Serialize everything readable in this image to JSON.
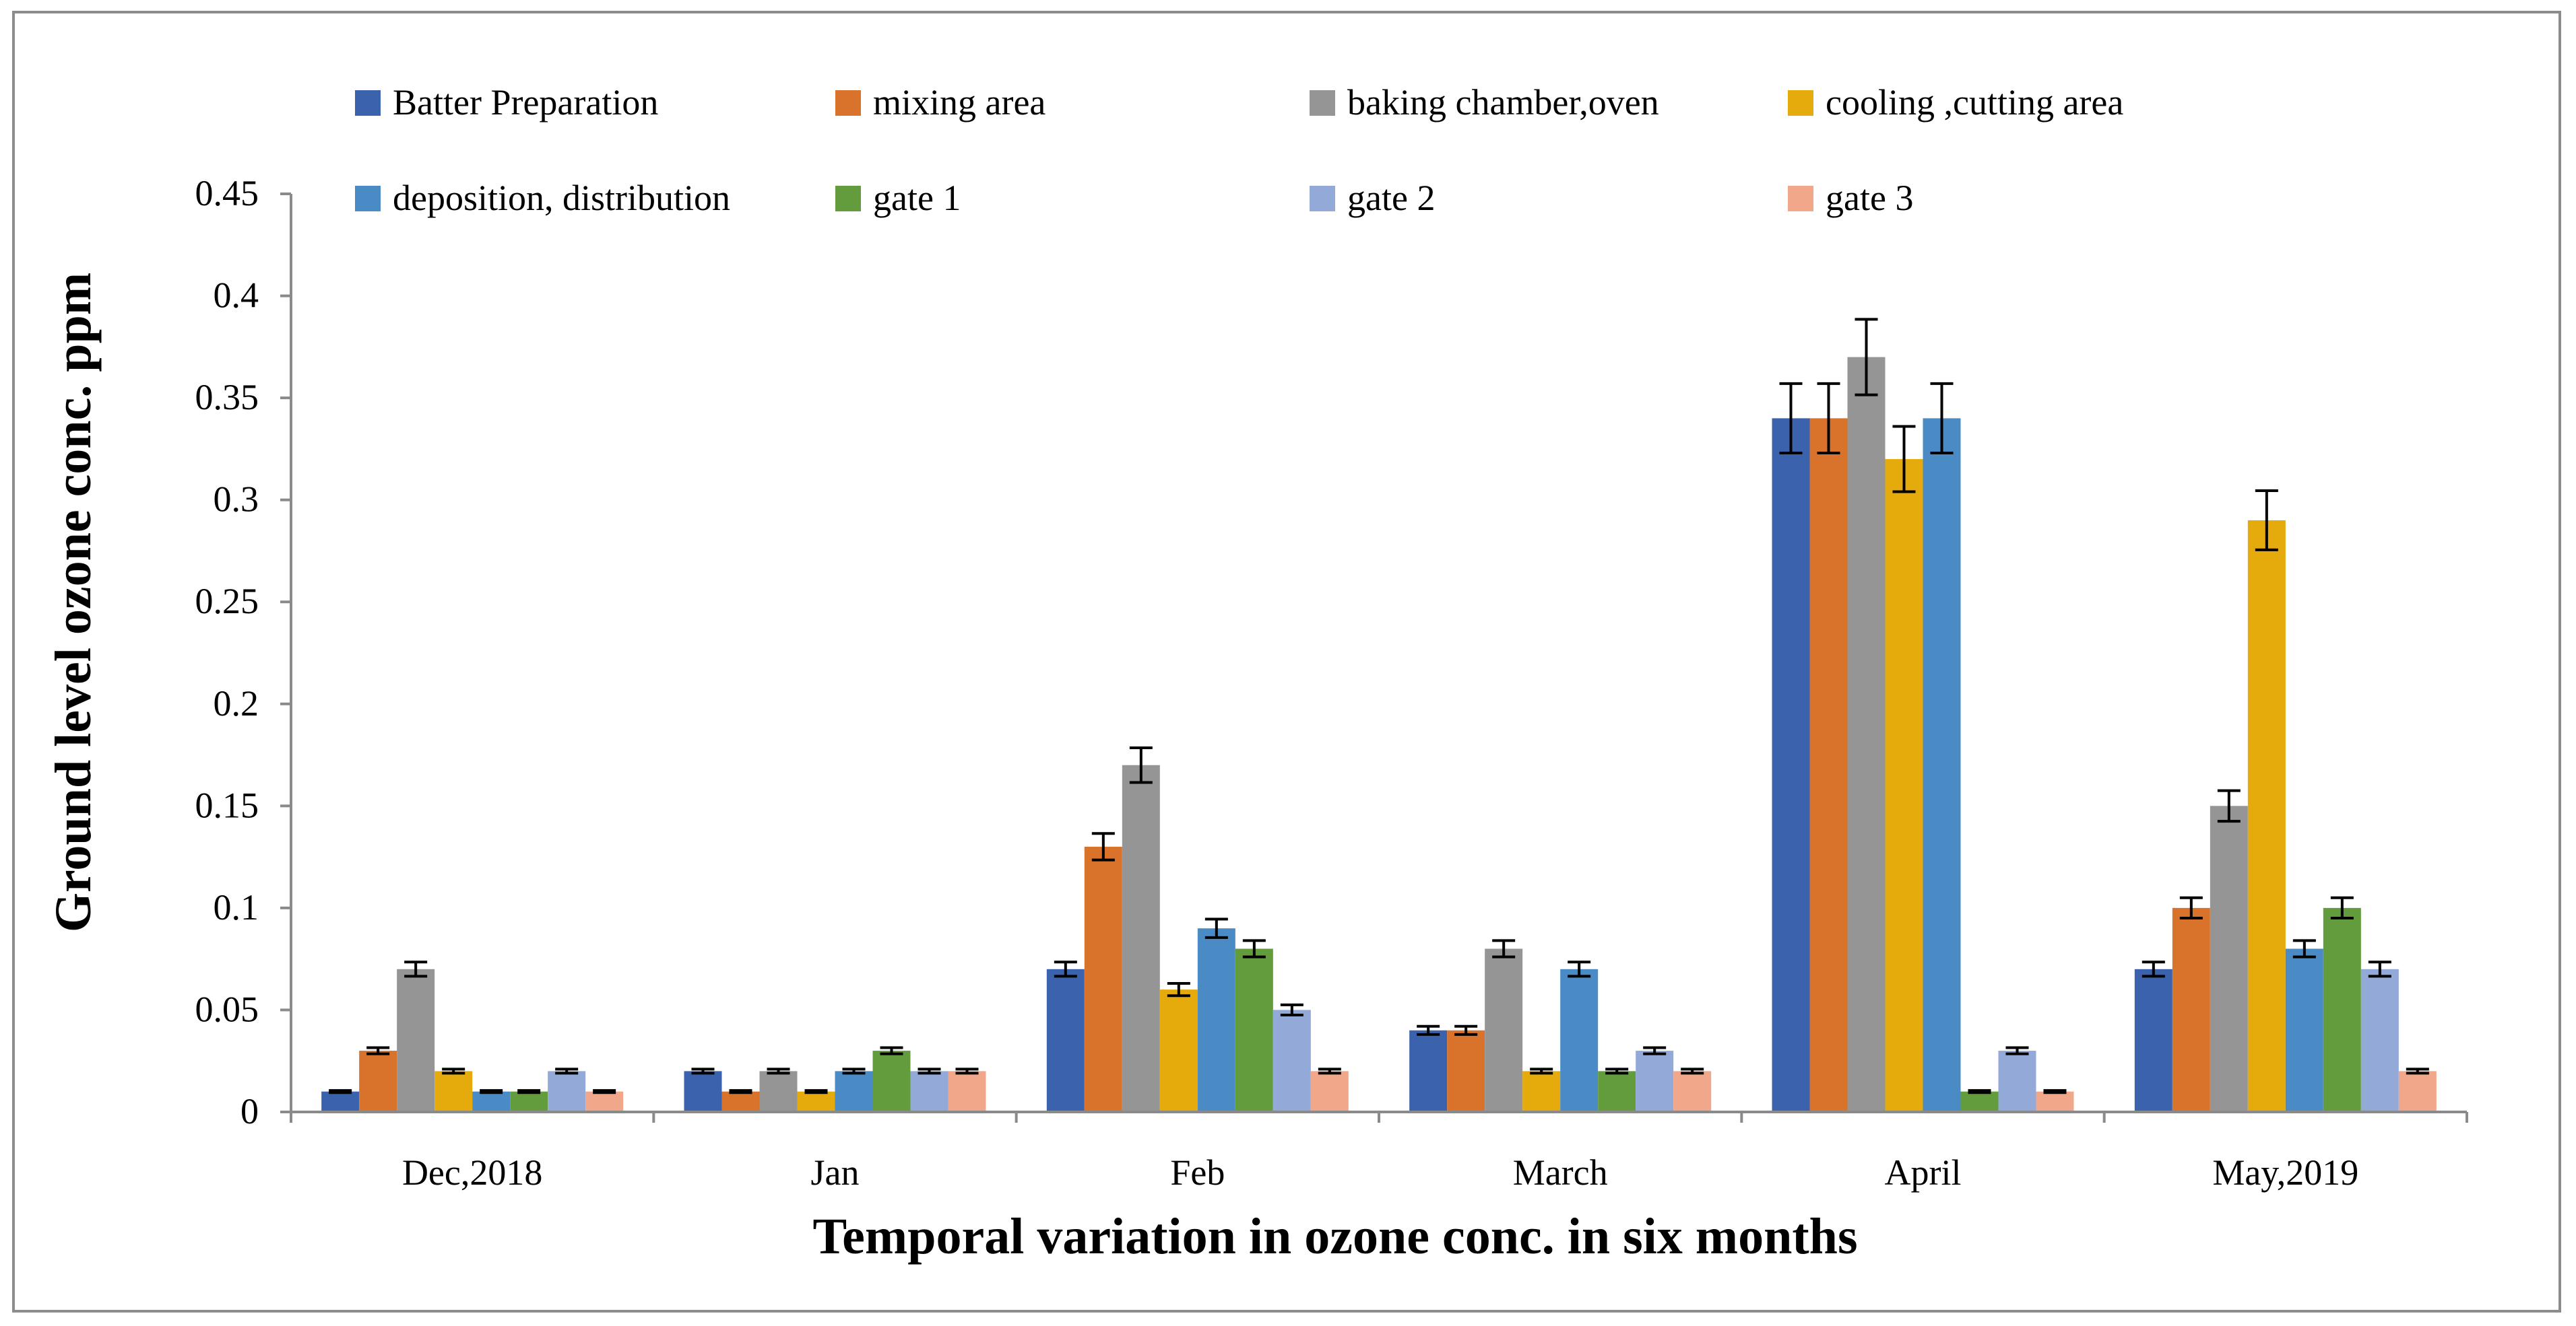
{
  "chart_data": {
    "type": "bar",
    "title": "",
    "xlabel": "Temporal variation in ozone conc. in six months",
    "ylabel": "Ground level ozone conc. ppm",
    "ylim": [
      0,
      0.45
    ],
    "yticks": [
      "0",
      "0.05",
      "0.1",
      "0.15",
      "0.2",
      "0.25",
      "0.3",
      "0.35",
      "0.4",
      "0.45"
    ],
    "categories": [
      "Dec,2018",
      "Jan",
      "Feb",
      "March",
      "April",
      "May,2019"
    ],
    "grid": false,
    "legend_placement": "top",
    "error_bars": "standard error (approx. 5% of value)",
    "series": [
      {
        "name": "Batter Preparation",
        "color": "#3b63ad",
        "values": [
          0.01,
          0.02,
          0.07,
          0.04,
          0.34,
          0.07
        ]
      },
      {
        "name": "mixing area",
        "color": "#d9722b",
        "values": [
          0.03,
          0.01,
          0.13,
          0.04,
          0.34,
          0.1
        ]
      },
      {
        "name": "baking chamber,oven",
        "color": "#959595",
        "values": [
          0.07,
          0.02,
          0.17,
          0.08,
          0.37,
          0.15
        ]
      },
      {
        "name": "cooling ,cutting area",
        "color": "#e5aa0b",
        "values": [
          0.02,
          0.01,
          0.06,
          0.02,
          0.32,
          0.29
        ]
      },
      {
        "name": "deposition, distribution",
        "color": "#4a8bc6",
        "values": [
          0.01,
          0.02,
          0.09,
          0.07,
          0.34,
          0.08
        ]
      },
      {
        "name": "gate 1",
        "color": "#639c3c",
        "values": [
          0.01,
          0.03,
          0.08,
          0.02,
          0.01,
          0.1
        ]
      },
      {
        "name": "gate 2",
        "color": "#93aad9",
        "values": [
          0.02,
          0.02,
          0.05,
          0.03,
          0.03,
          0.07
        ]
      },
      {
        "name": "gate 3",
        "color": "#f1a88a",
        "values": [
          0.01,
          0.02,
          0.02,
          0.02,
          0.01,
          0.02
        ]
      }
    ]
  }
}
